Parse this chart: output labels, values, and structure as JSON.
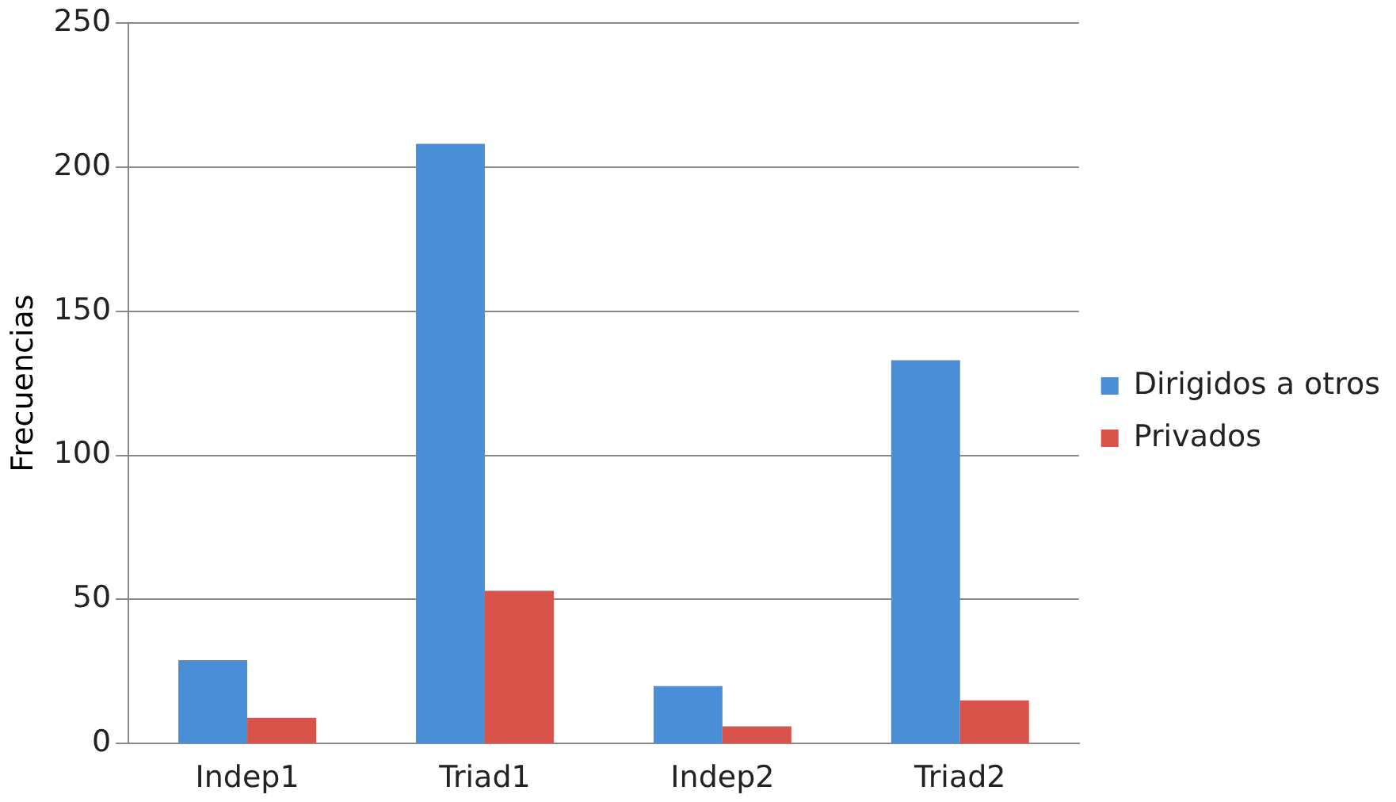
{
  "chart_data": {
    "type": "bar",
    "ylabel": "Frecuencias",
    "categories": [
      "Indep1",
      "Triad1",
      "Indep2",
      "Triad2"
    ],
    "series": [
      {
        "name": "Dirigidos a otros",
        "color": "#4a8fd6",
        "values": [
          29,
          208,
          20,
          133
        ]
      },
      {
        "name": "Privados",
        "color": "#d9534a",
        "values": [
          9,
          53,
          6,
          15
        ]
      }
    ],
    "ylim": [
      0,
      250
    ],
    "yticks": [
      0,
      50,
      100,
      150,
      200,
      250
    ],
    "grid": "y",
    "legend": "right"
  }
}
